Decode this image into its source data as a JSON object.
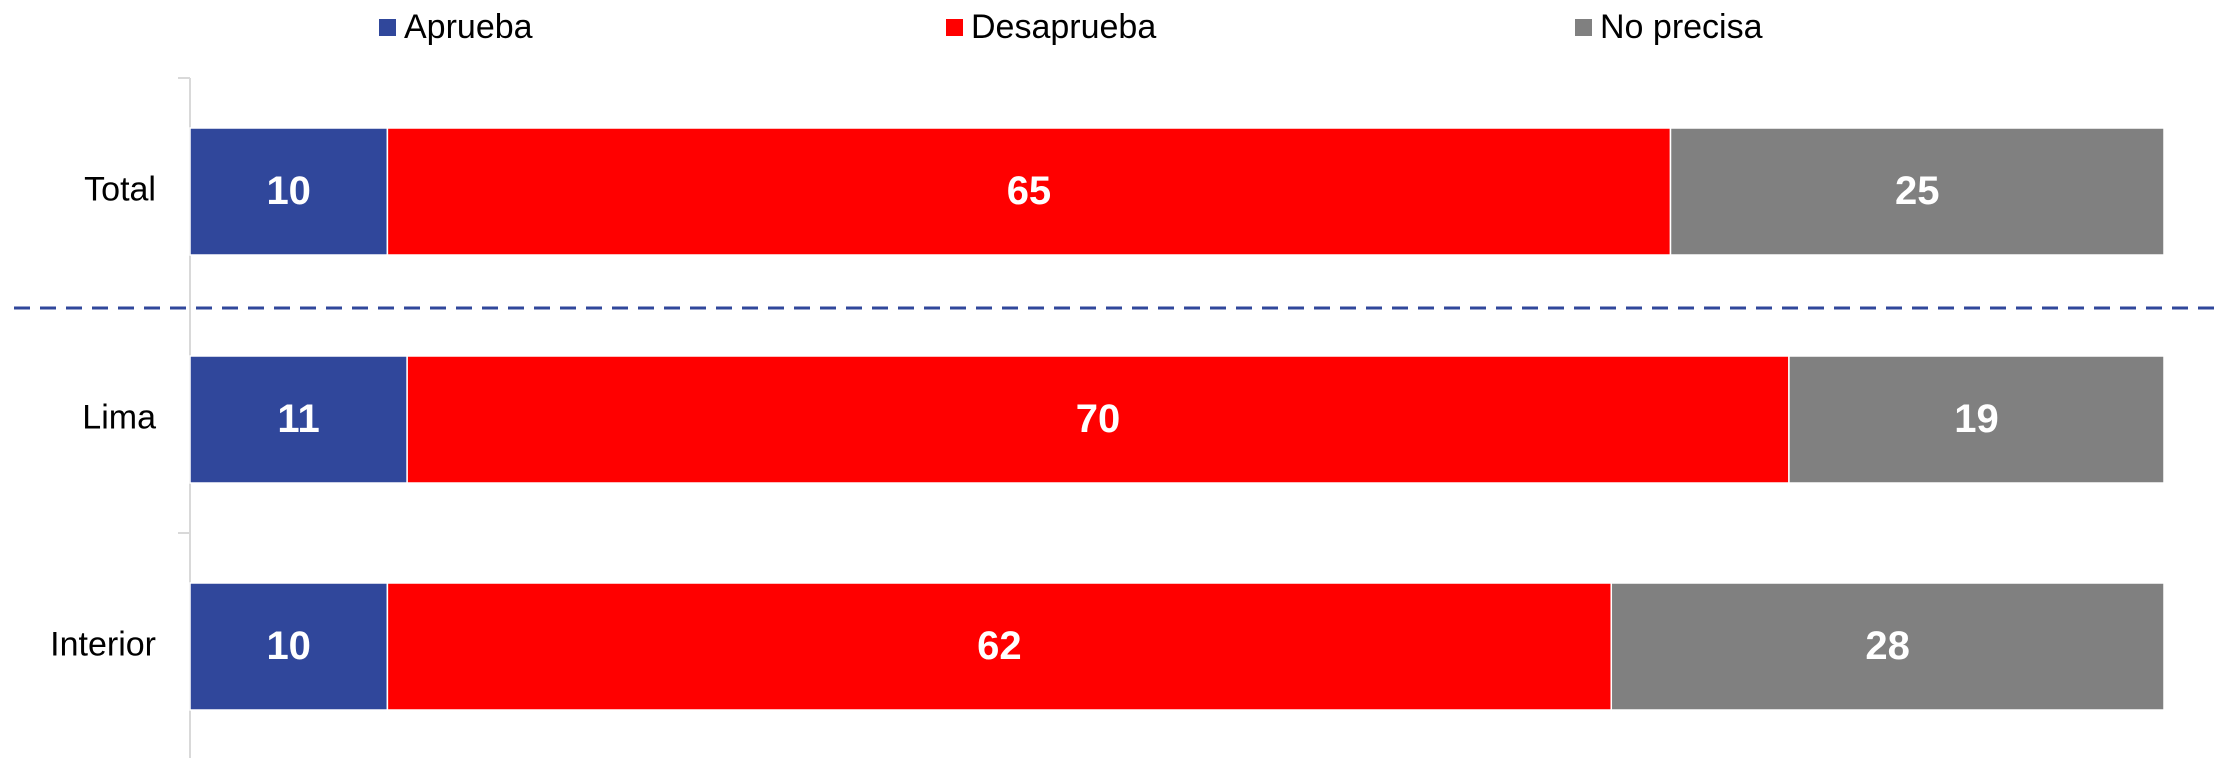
{
  "chart_data": {
    "type": "stacked_bar_horizontal",
    "categories": [
      "Total",
      "Lima",
      "Interior"
    ],
    "series": [
      {
        "name": "Aprueba",
        "color": "#30479b",
        "values": [
          10,
          11,
          10
        ]
      },
      {
        "name": "Desaprueba",
        "color": "#ff0000",
        "values": [
          65,
          70,
          62
        ]
      },
      {
        "name": "No precisa",
        "color": "#808080",
        "values": [
          25,
          19,
          28
        ]
      }
    ],
    "xlim": [
      0,
      100
    ],
    "legend": "top"
  }
}
